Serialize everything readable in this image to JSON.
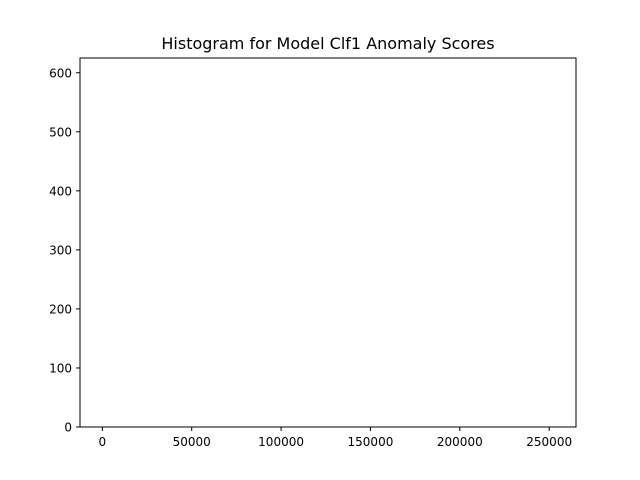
{
  "chart_data": {
    "type": "bar",
    "title": "Histogram for Model Clf1 Anomaly Scores",
    "xlabel": "",
    "ylabel": "",
    "xlim": [
      -12500,
      265000
    ],
    "ylim": [
      0,
      625
    ],
    "x_ticks": [
      0,
      50000,
      100000,
      150000,
      200000,
      250000
    ],
    "y_ticks": [
      0,
      100,
      200,
      300,
      400,
      500,
      600
    ],
    "grid": false,
    "bins": [],
    "counts": []
  }
}
